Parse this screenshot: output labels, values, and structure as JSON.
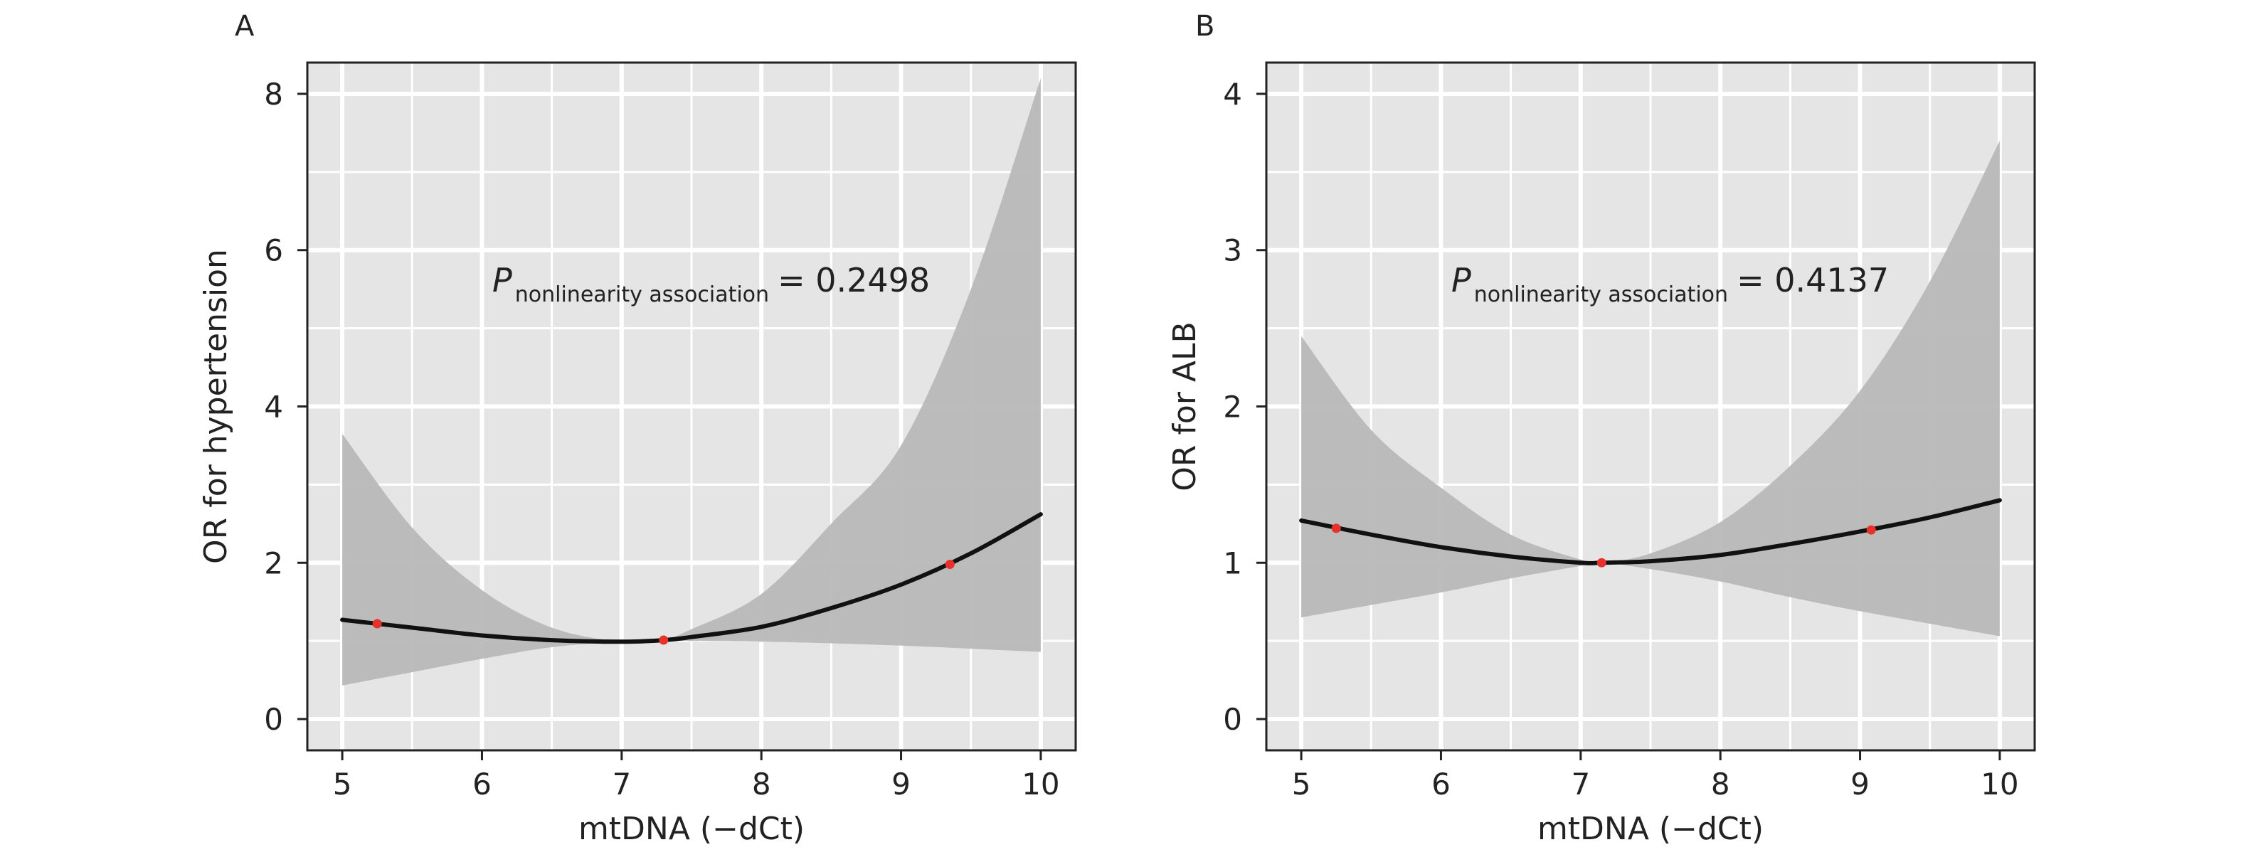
{
  "chart_data": [
    {
      "type": "line",
      "panel_label": "A",
      "xlabel": "mtDNA (−dCt)",
      "ylabel": "OR for hypertension",
      "annotation": {
        "p_symbol": "P",
        "p_subscript": "nonlinearity  association",
        "p_value_text": "= 0.2498"
      },
      "xlim": [
        4.75,
        10.25
      ],
      "ylim": [
        -0.4,
        8.4
      ],
      "x_ticks": [
        5,
        6,
        7,
        8,
        9,
        10
      ],
      "y_ticks": [
        0,
        2,
        4,
        6,
        8
      ],
      "grid": true,
      "series": [
        {
          "role": "odds-ratio curve",
          "color": "#111111",
          "x": [
            5.0,
            5.5,
            6.0,
            6.5,
            7.0,
            7.3,
            7.5,
            8.0,
            8.5,
            9.0,
            9.5,
            10.0
          ],
          "y": [
            1.27,
            1.17,
            1.07,
            1.01,
            0.99,
            1.01,
            1.05,
            1.18,
            1.42,
            1.72,
            2.12,
            2.62
          ]
        },
        {
          "role": "confidence band",
          "color": "#b8b8b8",
          "x": [
            5.0,
            5.5,
            6.0,
            6.5,
            7.0,
            7.3,
            7.5,
            8.0,
            8.5,
            9.0,
            9.5,
            10.0
          ],
          "lower": [
            0.43,
            0.6,
            0.77,
            0.92,
            0.99,
            1.0,
            1.0,
            0.99,
            0.97,
            0.94,
            0.9,
            0.86
          ],
          "upper": [
            3.65,
            2.45,
            1.65,
            1.17,
            0.99,
            1.02,
            1.15,
            1.6,
            2.5,
            3.5,
            5.5,
            8.2
          ]
        }
      ],
      "knots": {
        "color": "#e8312a",
        "x": [
          5.25,
          7.3,
          9.35
        ],
        "y": [
          1.22,
          1.01,
          1.98
        ]
      }
    },
    {
      "type": "line",
      "panel_label": "B",
      "xlabel": "mtDNA (−dCt)",
      "ylabel": "OR for ALB",
      "annotation": {
        "p_symbol": "P",
        "p_subscript": "nonlinearity  association",
        "p_value_text": "= 0.4137"
      },
      "xlim": [
        4.75,
        10.25
      ],
      "ylim": [
        -0.2,
        4.2
      ],
      "x_ticks": [
        5,
        6,
        7,
        8,
        9,
        10
      ],
      "y_ticks": [
        0,
        1,
        2,
        3,
        4
      ],
      "grid": true,
      "series": [
        {
          "role": "odds-ratio curve",
          "color": "#111111",
          "x": [
            5.0,
            5.5,
            6.0,
            6.5,
            7.0,
            7.15,
            7.5,
            8.0,
            8.5,
            9.0,
            9.5,
            10.0
          ],
          "y": [
            1.27,
            1.18,
            1.1,
            1.04,
            1.0,
            1.0,
            1.01,
            1.05,
            1.12,
            1.2,
            1.29,
            1.4
          ]
        },
        {
          "role": "confidence band",
          "color": "#b8b8b8",
          "x": [
            5.0,
            5.5,
            6.0,
            6.5,
            7.0,
            7.15,
            7.5,
            8.0,
            8.5,
            9.0,
            9.5,
            10.0
          ],
          "lower": [
            0.65,
            0.73,
            0.81,
            0.9,
            0.98,
            1.0,
            0.96,
            0.88,
            0.78,
            0.69,
            0.61,
            0.53
          ],
          "upper": [
            2.45,
            1.85,
            1.48,
            1.18,
            1.02,
            1.0,
            1.06,
            1.26,
            1.62,
            2.1,
            2.8,
            3.7
          ]
        }
      ],
      "knots": {
        "color": "#e8312a",
        "x": [
          5.25,
          7.15,
          9.08
        ],
        "y": [
          1.22,
          1.0,
          1.21
        ]
      }
    }
  ]
}
